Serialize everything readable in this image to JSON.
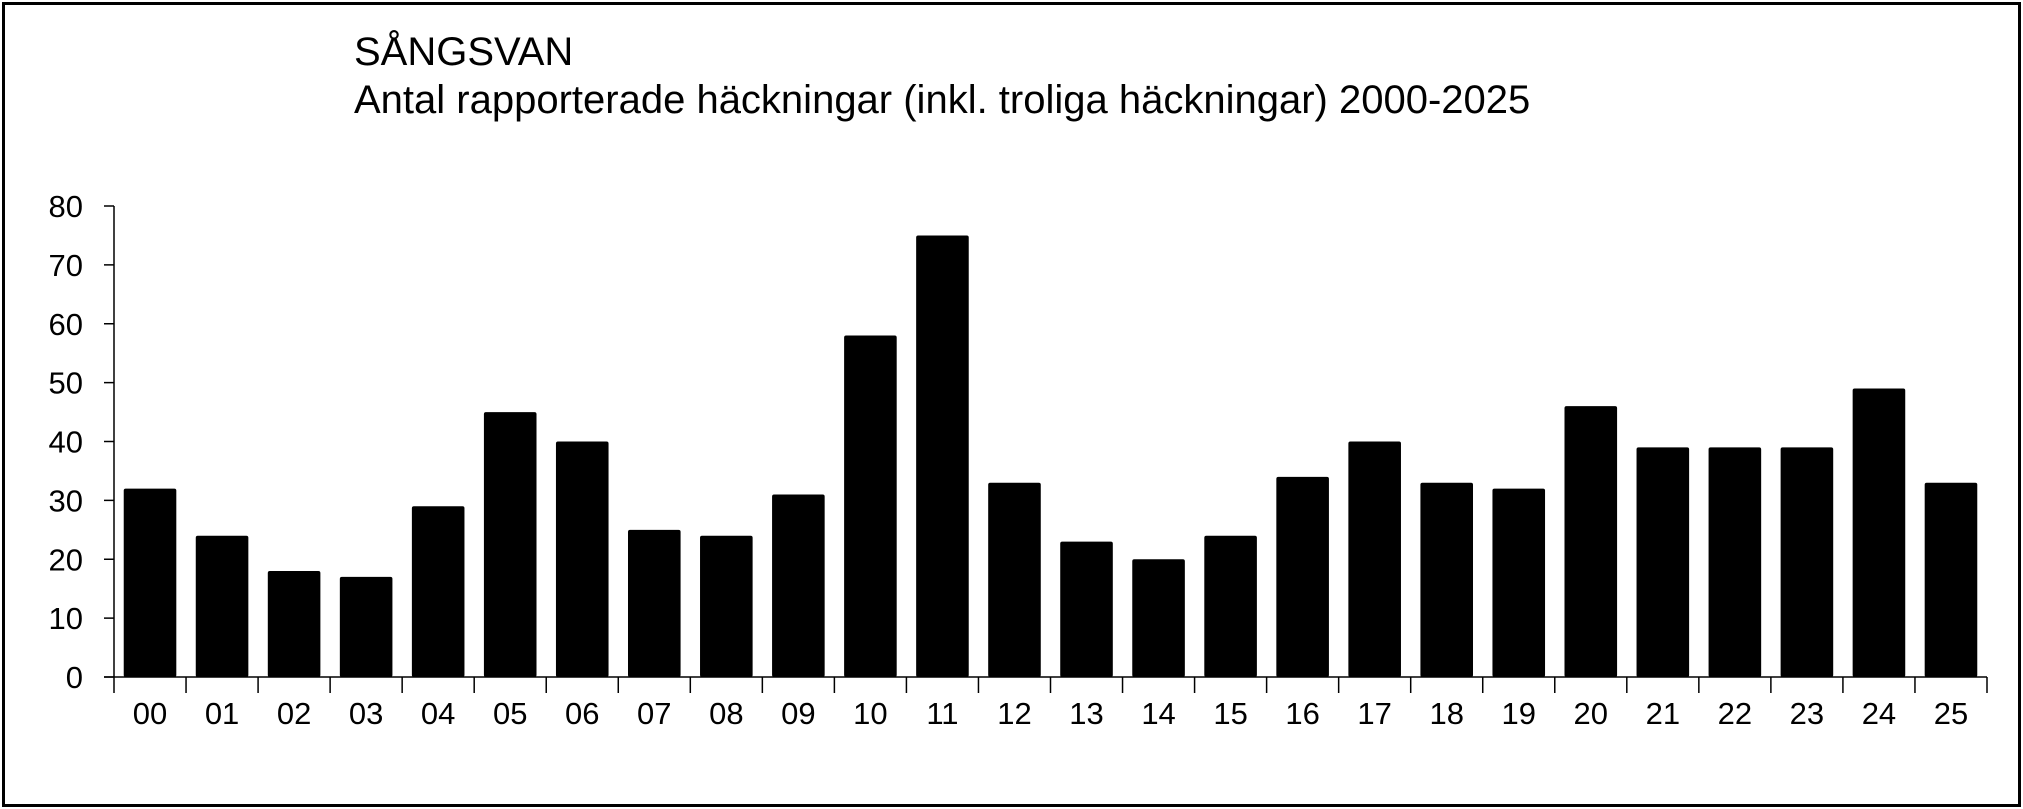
{
  "chart_data": {
    "type": "bar",
    "title": "SÅNGSVAN",
    "subtitle": "Antal rapporterade häckningar (inkl. troliga häckningar) 2000-2025",
    "xlabel": "",
    "ylabel": "",
    "categories": [
      "00",
      "01",
      "02",
      "03",
      "04",
      "05",
      "06",
      "07",
      "08",
      "09",
      "10",
      "11",
      "12",
      "13",
      "14",
      "15",
      "16",
      "17",
      "18",
      "19",
      "20",
      "21",
      "22",
      "23",
      "24",
      "25"
    ],
    "values": [
      32,
      24,
      18,
      17,
      29,
      45,
      40,
      25,
      24,
      31,
      58,
      75,
      33,
      23,
      20,
      24,
      34,
      40,
      33,
      32,
      46,
      39,
      39,
      39,
      49,
      33
    ],
    "ylim": [
      0,
      80
    ],
    "yticks": [
      "0",
      "10",
      "20",
      "30",
      "40",
      "50",
      "60",
      "70",
      "80"
    ],
    "grid": false,
    "bar_color": "#000000"
  }
}
